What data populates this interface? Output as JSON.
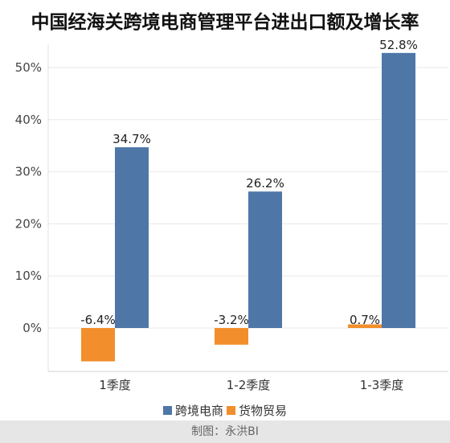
{
  "chart_data": {
    "type": "bar",
    "title": "中国经海关跨境电商管理平台进出口额及增长率",
    "categories": [
      "1季度",
      "1-2季度",
      "1-3季度"
    ],
    "series": [
      {
        "name": "跨境电商",
        "color": "#4e77a8",
        "values": [
          34.7,
          26.2,
          52.8
        ],
        "labels": [
          "34.7%",
          "26.2%",
          "52.8%"
        ]
      },
      {
        "name": "货物贸易",
        "color": "#f28e2b",
        "values": [
          -6.4,
          -3.2,
          0.7
        ],
        "labels": [
          "-6.4%",
          "-3.2%",
          "0.7%"
        ]
      }
    ],
    "ylim": [
      -8,
      56
    ],
    "yticks": [
      0,
      10,
      20,
      30,
      40,
      50
    ],
    "ytick_labels": [
      "0%",
      "10%",
      "20%",
      "30%",
      "40%",
      "50%"
    ],
    "grid": true,
    "legend": "bottom",
    "xlabel": "",
    "ylabel": ""
  },
  "footer": {
    "credit": "制图：永洪BI"
  }
}
